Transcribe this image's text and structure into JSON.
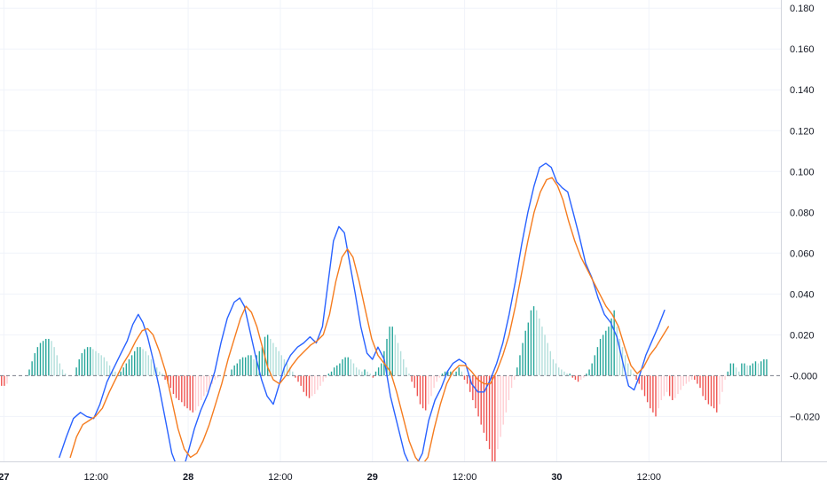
{
  "chart_data": {
    "type": "line",
    "title": "",
    "xlabel": "",
    "ylabel": "",
    "ylim": [
      -0.042,
      0.184
    ],
    "xlim": [
      0,
      1
    ],
    "grid": true,
    "y_ticks": [
      {
        "value": 0.18,
        "label": "0.180"
      },
      {
        "value": 0.16,
        "label": "0.160"
      },
      {
        "value": 0.14,
        "label": "0.140"
      },
      {
        "value": 0.12,
        "label": "0.120"
      },
      {
        "value": 0.1,
        "label": "0.100"
      },
      {
        "value": 0.08,
        "label": "0.080"
      },
      {
        "value": 0.06,
        "label": "0.060"
      },
      {
        "value": 0.04,
        "label": "0.040"
      },
      {
        "value": 0.02,
        "label": "0.020"
      },
      {
        "value": 0.0,
        "label": "-0.000"
      },
      {
        "value": -0.02,
        "label": "−0.020"
      }
    ],
    "x_ticks": [
      {
        "value": 0.005,
        "label": "27",
        "day": true
      },
      {
        "value": 0.123,
        "label": "12:00",
        "day": false
      },
      {
        "value": 0.241,
        "label": "28",
        "day": true
      },
      {
        "value": 0.359,
        "label": "12:00",
        "day": false
      },
      {
        "value": 0.477,
        "label": "29",
        "day": true
      },
      {
        "value": 0.595,
        "label": "12:00",
        "day": false
      },
      {
        "value": 0.713,
        "label": "30",
        "day": true
      },
      {
        "value": 0.831,
        "label": "12:00",
        "day": false
      }
    ],
    "zero_line": 0.0,
    "series": [
      {
        "role": "macd",
        "color": "#2962ff",
        "points": [
          [
            0.076,
            -0.04
          ],
          [
            0.085,
            -0.03
          ],
          [
            0.094,
            -0.021
          ],
          [
            0.103,
            -0.018
          ],
          [
            0.111,
            -0.02
          ],
          [
            0.12,
            -0.021
          ],
          [
            0.128,
            -0.014
          ],
          [
            0.137,
            -0.003
          ],
          [
            0.146,
            0.004
          ],
          [
            0.155,
            0.011
          ],
          [
            0.163,
            0.017
          ],
          [
            0.17,
            0.025
          ],
          [
            0.177,
            0.03
          ],
          [
            0.183,
            0.026
          ],
          [
            0.189,
            0.019
          ],
          [
            0.196,
            0.008
          ],
          [
            0.204,
            -0.006
          ],
          [
            0.212,
            -0.022
          ],
          [
            0.22,
            -0.038
          ],
          [
            0.226,
            -0.044
          ],
          [
            0.236,
            -0.044
          ],
          [
            0.242,
            -0.036
          ],
          [
            0.249,
            -0.026
          ],
          [
            0.257,
            -0.017
          ],
          [
            0.266,
            -0.009
          ],
          [
            0.275,
            0.002
          ],
          [
            0.283,
            0.016
          ],
          [
            0.291,
            0.028
          ],
          [
            0.3,
            0.036
          ],
          [
            0.307,
            0.038
          ],
          [
            0.313,
            0.034
          ],
          [
            0.32,
            0.022
          ],
          [
            0.327,
            0.01
          ],
          [
            0.335,
            -0.002
          ],
          [
            0.342,
            -0.01
          ],
          [
            0.35,
            -0.014
          ],
          [
            0.357,
            -0.005
          ],
          [
            0.364,
            0.004
          ],
          [
            0.372,
            0.01
          ],
          [
            0.381,
            0.014
          ],
          [
            0.389,
            0.016
          ],
          [
            0.397,
            0.019
          ],
          [
            0.405,
            0.016
          ],
          [
            0.413,
            0.024
          ],
          [
            0.42,
            0.045
          ],
          [
            0.427,
            0.066
          ],
          [
            0.434,
            0.073
          ],
          [
            0.441,
            0.07
          ],
          [
            0.448,
            0.055
          ],
          [
            0.455,
            0.04
          ],
          [
            0.462,
            0.024
          ],
          [
            0.47,
            0.011
          ],
          [
            0.477,
            0.008
          ],
          [
            0.484,
            0.014
          ],
          [
            0.492,
            0.008
          ],
          [
            0.5,
            -0.01
          ],
          [
            0.509,
            -0.024
          ],
          [
            0.518,
            -0.038
          ],
          [
            0.525,
            -0.044
          ],
          [
            0.533,
            -0.044
          ],
          [
            0.541,
            -0.038
          ],
          [
            0.549,
            -0.022
          ],
          [
            0.557,
            -0.012
          ],
          [
            0.565,
            -0.006
          ],
          [
            0.573,
            0.002
          ],
          [
            0.58,
            0.006
          ],
          [
            0.588,
            0.008
          ],
          [
            0.596,
            0.006
          ],
          [
            0.604,
            -0.004
          ],
          [
            0.612,
            -0.008
          ],
          [
            0.62,
            -0.008
          ],
          [
            0.628,
            -0.002
          ],
          [
            0.636,
            0.006
          ],
          [
            0.644,
            0.016
          ],
          [
            0.652,
            0.03
          ],
          [
            0.66,
            0.046
          ],
          [
            0.668,
            0.064
          ],
          [
            0.676,
            0.08
          ],
          [
            0.684,
            0.093
          ],
          [
            0.691,
            0.102
          ],
          [
            0.699,
            0.104
          ],
          [
            0.706,
            0.102
          ],
          [
            0.713,
            0.095
          ],
          [
            0.72,
            0.092
          ],
          [
            0.727,
            0.09
          ],
          [
            0.734,
            0.08
          ],
          [
            0.742,
            0.068
          ],
          [
            0.75,
            0.055
          ],
          [
            0.758,
            0.048
          ],
          [
            0.766,
            0.038
          ],
          [
            0.774,
            0.03
          ],
          [
            0.782,
            0.026
          ],
          [
            0.79,
            0.019
          ],
          [
            0.798,
            0.006
          ],
          [
            0.805,
            -0.005
          ],
          [
            0.812,
            -0.007
          ],
          [
            0.819,
            0.0
          ],
          [
            0.827,
            0.01
          ],
          [
            0.835,
            0.017
          ],
          [
            0.843,
            0.024
          ],
          [
            0.851,
            0.032
          ]
        ]
      },
      {
        "role": "signal",
        "color": "#f57c1f",
        "points": [
          [
            0.09,
            -0.04
          ],
          [
            0.098,
            -0.03
          ],
          [
            0.106,
            -0.024
          ],
          [
            0.114,
            -0.022
          ],
          [
            0.122,
            -0.02
          ],
          [
            0.131,
            -0.016
          ],
          [
            0.14,
            -0.008
          ],
          [
            0.149,
            -0.001
          ],
          [
            0.158,
            0.006
          ],
          [
            0.166,
            0.011
          ],
          [
            0.174,
            0.017
          ],
          [
            0.182,
            0.022
          ],
          [
            0.189,
            0.023
          ],
          [
            0.196,
            0.02
          ],
          [
            0.204,
            0.012
          ],
          [
            0.212,
            0.002
          ],
          [
            0.22,
            -0.012
          ],
          [
            0.228,
            -0.026
          ],
          [
            0.236,
            -0.036
          ],
          [
            0.244,
            -0.04
          ],
          [
            0.252,
            -0.038
          ],
          [
            0.26,
            -0.032
          ],
          [
            0.268,
            -0.024
          ],
          [
            0.276,
            -0.014
          ],
          [
            0.284,
            -0.004
          ],
          [
            0.292,
            0.008
          ],
          [
            0.3,
            0.018
          ],
          [
            0.308,
            0.028
          ],
          [
            0.315,
            0.034
          ],
          [
            0.322,
            0.031
          ],
          [
            0.329,
            0.024
          ],
          [
            0.336,
            0.014
          ],
          [
            0.343,
            0.004
          ],
          [
            0.35,
            -0.002
          ],
          [
            0.358,
            -0.004
          ],
          [
            0.366,
            0.0
          ],
          [
            0.374,
            0.005
          ],
          [
            0.382,
            0.009
          ],
          [
            0.39,
            0.012
          ],
          [
            0.398,
            0.015
          ],
          [
            0.406,
            0.017
          ],
          [
            0.414,
            0.02
          ],
          [
            0.422,
            0.03
          ],
          [
            0.43,
            0.046
          ],
          [
            0.438,
            0.058
          ],
          [
            0.445,
            0.062
          ],
          [
            0.452,
            0.058
          ],
          [
            0.46,
            0.046
          ],
          [
            0.468,
            0.032
          ],
          [
            0.476,
            0.018
          ],
          [
            0.484,
            0.01
          ],
          [
            0.492,
            0.006
          ],
          [
            0.5,
            0.002
          ],
          [
            0.508,
            -0.008
          ],
          [
            0.516,
            -0.02
          ],
          [
            0.524,
            -0.032
          ],
          [
            0.532,
            -0.04
          ],
          [
            0.54,
            -0.044
          ],
          [
            0.548,
            -0.04
          ],
          [
            0.556,
            -0.026
          ],
          [
            0.564,
            -0.014
          ],
          [
            0.572,
            -0.004
          ],
          [
            0.58,
            0.002
          ],
          [
            0.588,
            0.005
          ],
          [
            0.596,
            0.005
          ],
          [
            0.604,
            0.002
          ],
          [
            0.612,
            -0.002
          ],
          [
            0.62,
            -0.004
          ],
          [
            0.628,
            -0.004
          ],
          [
            0.636,
            0.002
          ],
          [
            0.644,
            0.01
          ],
          [
            0.652,
            0.02
          ],
          [
            0.66,
            0.034
          ],
          [
            0.668,
            0.05
          ],
          [
            0.676,
            0.066
          ],
          [
            0.684,
            0.08
          ],
          [
            0.692,
            0.09
          ],
          [
            0.7,
            0.096
          ],
          [
            0.707,
            0.097
          ],
          [
            0.714,
            0.093
          ],
          [
            0.721,
            0.086
          ],
          [
            0.728,
            0.076
          ],
          [
            0.736,
            0.066
          ],
          [
            0.744,
            0.058
          ],
          [
            0.752,
            0.052
          ],
          [
            0.76,
            0.046
          ],
          [
            0.768,
            0.04
          ],
          [
            0.776,
            0.034
          ],
          [
            0.784,
            0.03
          ],
          [
            0.792,
            0.024
          ],
          [
            0.8,
            0.014
          ],
          [
            0.808,
            0.005
          ],
          [
            0.816,
            0.001
          ],
          [
            0.824,
            0.004
          ],
          [
            0.832,
            0.01
          ],
          [
            0.84,
            0.014
          ],
          [
            0.848,
            0.019
          ],
          [
            0.856,
            0.024
          ]
        ]
      }
    ],
    "histogram": {
      "x_start": 0.002,
      "x_step": 0.00355,
      "colors": {
        "pos_rising": "#26a69a",
        "pos_falling": "#b2dfdb",
        "neg_falling": "#ef5350",
        "neg_rising": "#ffcdd2"
      },
      "values": [
        -0.005,
        -0.005,
        -0.004,
        0,
        0,
        0,
        0,
        0,
        0,
        0,
        0.003,
        0.007,
        0.011,
        0.014,
        0.016,
        0.017,
        0.018,
        0.018,
        0.017,
        0.014,
        0.01,
        0.006,
        0.003,
        0.001,
        0,
        0,
        0,
        0.004,
        0.008,
        0.011,
        0.013,
        0.014,
        0.014,
        0.013,
        0.012,
        0.011,
        0.01,
        0.009,
        0.007,
        0.005,
        0.003,
        0.002,
        0.001,
        0.002,
        0.004,
        0.006,
        0.008,
        0.01,
        0.012,
        0.014,
        0.014,
        0.013,
        0.012,
        0.01,
        0.008,
        0.006,
        0.004,
        0.002,
        0.001,
        -0.002,
        -0.004,
        -0.006,
        -0.009,
        -0.011,
        -0.012,
        -0.013,
        -0.015,
        -0.016,
        -0.017,
        -0.018,
        -0.017,
        -0.015,
        -0.012,
        -0.01,
        -0.008,
        -0.006,
        -0.004,
        -0.002,
        -0.001,
        0,
        0,
        0,
        0,
        0.003,
        0.005,
        0.006,
        0.008,
        0.009,
        0.009,
        0.01,
        0.01,
        0.008,
        0.01,
        0.012,
        0.014,
        0.019,
        0.02,
        0.018,
        0.016,
        0.014,
        0.012,
        0.01,
        0.008,
        0.006,
        0.004,
        0.002,
        -0.001,
        -0.003,
        -0.005,
        -0.008,
        -0.01,
        -0.011,
        -0.01,
        -0.009,
        -0.007,
        -0.005,
        -0.003,
        -0.001,
        0.001,
        0.002,
        0.004,
        0.005,
        0.006,
        0.008,
        0.009,
        0.009,
        0.008,
        0.006,
        0.004,
        0.003,
        0.002,
        0.003,
        0.002,
        0.001,
        -0.001,
        0.002,
        0.004,
        0.006,
        0.012,
        0.018,
        0.024,
        0.024,
        0.02,
        0.016,
        0.012,
        0.008,
        0.004,
        0.001,
        -0.003,
        -0.006,
        -0.01,
        -0.014,
        -0.016,
        -0.017,
        -0.014,
        -0.01,
        -0.006,
        -0.003,
        -0.001,
        0.001,
        0.002,
        0.002,
        0.002,
        0.001,
        0.002,
        0.004,
        0.002,
        -0.002,
        -0.004,
        -0.008,
        -0.012,
        -0.016,
        -0.02,
        -0.024,
        -0.028,
        -0.032,
        -0.036,
        -0.042,
        -0.042,
        -0.036,
        -0.03,
        -0.024,
        -0.018,
        -0.012,
        -0.006,
        -0.002,
        0.004,
        0.01,
        0.016,
        0.022,
        0.026,
        0.032,
        0.034,
        0.032,
        0.028,
        0.024,
        0.02,
        0.016,
        0.012,
        0.008,
        0.006,
        0.004,
        0.003,
        0.002,
        0.001,
        0.001,
        -0.001,
        -0.002,
        -0.003,
        -0.002,
        -0.001,
        0.001,
        0.003,
        0.006,
        0.01,
        0.014,
        0.018,
        0.02,
        0.022,
        0.024,
        0.028,
        0.032,
        0.024,
        0.018,
        0.014,
        0.01,
        0.006,
        0.003,
        0.001,
        -0.002,
        -0.004,
        -0.007,
        -0.01,
        -0.013,
        -0.016,
        -0.018,
        -0.02,
        -0.016,
        -0.012,
        -0.01,
        -0.008,
        -0.01,
        -0.012,
        -0.011,
        -0.009,
        -0.007,
        -0.005,
        -0.004,
        -0.003,
        -0.002,
        -0.002,
        -0.004,
        -0.006,
        -0.01,
        -0.012,
        -0.014,
        -0.015,
        -0.016,
        -0.018,
        -0.014,
        -0.008,
        -0.002,
        0.002,
        0.006,
        0.006,
        0.004,
        0.002,
        0.006,
        0.006,
        0.005,
        0.005,
        0.006,
        0.007,
        0.006,
        0.007,
        0.008,
        0.008
      ]
    }
  }
}
